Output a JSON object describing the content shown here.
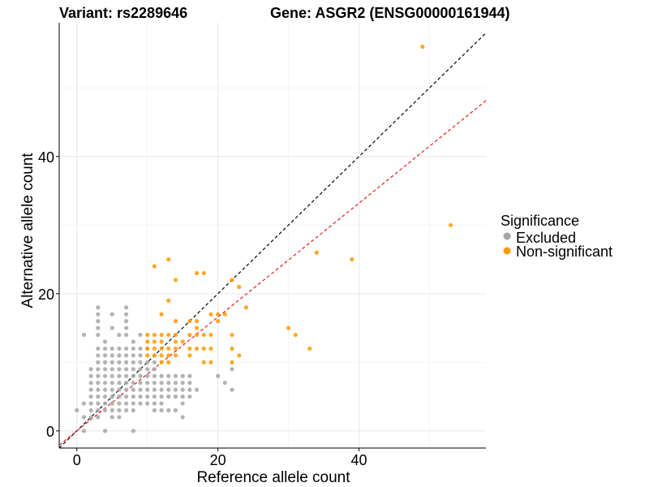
{
  "chart_data": {
    "type": "scatter",
    "title_left": "Variant: rs2289646",
    "title_right": "Gene: ASGR2 (ENSG00000161944)",
    "xlabel": "Reference allele count",
    "ylabel": "Alternative allele count",
    "xlim": [
      -2.5,
      58
    ],
    "ylim": [
      -2.5,
      59.5
    ],
    "x_ticks": [
      0,
      20,
      40
    ],
    "y_ticks": [
      0,
      20,
      40
    ],
    "x_minor_grid": [
      10,
      30,
      50
    ],
    "y_minor_grid": [
      10,
      30,
      50
    ],
    "grid": true,
    "reference_lines": [
      {
        "name": "y = x",
        "slope": 1.0,
        "intercept": 0,
        "color": "#000000",
        "dashed": true
      },
      {
        "name": "fitted ratio",
        "slope": 0.83,
        "intercept": 0,
        "color": "#e41a1c",
        "dashed": true
      }
    ],
    "legend": {
      "title": "Significance",
      "position": "right",
      "entries": [
        {
          "label": "Excluded",
          "color": "#a6a6a6"
        },
        {
          "label": "Non-significant",
          "color": "#ff9900"
        }
      ]
    },
    "series": [
      {
        "name": "Excluded",
        "color": "#a6a6a6",
        "points": [
          [
            0,
            3
          ],
          [
            1,
            0
          ],
          [
            1,
            2
          ],
          [
            1,
            4
          ],
          [
            1,
            14
          ],
          [
            2,
            2
          ],
          [
            2,
            3
          ],
          [
            2,
            4
          ],
          [
            2,
            5
          ],
          [
            2,
            6
          ],
          [
            2,
            7
          ],
          [
            2,
            8
          ],
          [
            2,
            9
          ],
          [
            3,
            2
          ],
          [
            3,
            3
          ],
          [
            3,
            4
          ],
          [
            3,
            5
          ],
          [
            3,
            6
          ],
          [
            3,
            7
          ],
          [
            3,
            8
          ],
          [
            3,
            9
          ],
          [
            3,
            10
          ],
          [
            3,
            11
          ],
          [
            3,
            12
          ],
          [
            3,
            14
          ],
          [
            3,
            15
          ],
          [
            3,
            16
          ],
          [
            3,
            17
          ],
          [
            3,
            18
          ],
          [
            4,
            0
          ],
          [
            4,
            3
          ],
          [
            4,
            4
          ],
          [
            4,
            5
          ],
          [
            4,
            6
          ],
          [
            4,
            7
          ],
          [
            4,
            8
          ],
          [
            4,
            9
          ],
          [
            4,
            10
          ],
          [
            4,
            11
          ],
          [
            4,
            12
          ],
          [
            4,
            13
          ],
          [
            5,
            2
          ],
          [
            5,
            3
          ],
          [
            5,
            4
          ],
          [
            5,
            5
          ],
          [
            5,
            6
          ],
          [
            5,
            7
          ],
          [
            5,
            8
          ],
          [
            5,
            9
          ],
          [
            5,
            10
          ],
          [
            5,
            11
          ],
          [
            5,
            12
          ],
          [
            5,
            15
          ],
          [
            5,
            17
          ],
          [
            6,
            2
          ],
          [
            6,
            3
          ],
          [
            6,
            4
          ],
          [
            6,
            5
          ],
          [
            6,
            6
          ],
          [
            6,
            7
          ],
          [
            6,
            8
          ],
          [
            6,
            9
          ],
          [
            6,
            10
          ],
          [
            6,
            11
          ],
          [
            6,
            12
          ],
          [
            6,
            14
          ],
          [
            7,
            3
          ],
          [
            7,
            4
          ],
          [
            7,
            5
          ],
          [
            7,
            6
          ],
          [
            7,
            7
          ],
          [
            7,
            8
          ],
          [
            7,
            9
          ],
          [
            7,
            10
          ],
          [
            7,
            11
          ],
          [
            7,
            12
          ],
          [
            7,
            14
          ],
          [
            7,
            15
          ],
          [
            7,
            16
          ],
          [
            7,
            17
          ],
          [
            7,
            18
          ],
          [
            8,
            0
          ],
          [
            8,
            3
          ],
          [
            8,
            4
          ],
          [
            8,
            5
          ],
          [
            8,
            6
          ],
          [
            8,
            7
          ],
          [
            8,
            8
          ],
          [
            8,
            9
          ],
          [
            8,
            10
          ],
          [
            8,
            11
          ],
          [
            8,
            12
          ],
          [
            8,
            13
          ],
          [
            9,
            4
          ],
          [
            9,
            5
          ],
          [
            9,
            6
          ],
          [
            9,
            7
          ],
          [
            9,
            8
          ],
          [
            9,
            9
          ],
          [
            9,
            10
          ],
          [
            9,
            11
          ],
          [
            9,
            12
          ],
          [
            9,
            14
          ],
          [
            10,
            4
          ],
          [
            10,
            5
          ],
          [
            10,
            6
          ],
          [
            10,
            7
          ],
          [
            10,
            8
          ],
          [
            10,
            9
          ],
          [
            10,
            10
          ],
          [
            10,
            12
          ],
          [
            11,
            3
          ],
          [
            11,
            4
          ],
          [
            11,
            5
          ],
          [
            11,
            6
          ],
          [
            11,
            7
          ],
          [
            11,
            8
          ],
          [
            11,
            9
          ],
          [
            11,
            10
          ],
          [
            12,
            3
          ],
          [
            12,
            4
          ],
          [
            12,
            5
          ],
          [
            12,
            6
          ],
          [
            12,
            7
          ],
          [
            12,
            8
          ],
          [
            13,
            3
          ],
          [
            13,
            5
          ],
          [
            13,
            6
          ],
          [
            13,
            7
          ],
          [
            13,
            8
          ],
          [
            14,
            3
          ],
          [
            14,
            5
          ],
          [
            14,
            6
          ],
          [
            14,
            7
          ],
          [
            14,
            8
          ],
          [
            15,
            2
          ],
          [
            15,
            4
          ],
          [
            15,
            5
          ],
          [
            15,
            6
          ],
          [
            15,
            7
          ],
          [
            15,
            8
          ],
          [
            16,
            5
          ],
          [
            16,
            6
          ],
          [
            16,
            7
          ],
          [
            16,
            8
          ],
          [
            17,
            6
          ],
          [
            20,
            8
          ],
          [
            21,
            7
          ],
          [
            22,
            6
          ],
          [
            22,
            9
          ]
        ]
      },
      {
        "name": "Non-significant",
        "color": "#ff9900",
        "points": [
          [
            10,
            11
          ],
          [
            10,
            12
          ],
          [
            10,
            13
          ],
          [
            10,
            14
          ],
          [
            11,
            11
          ],
          [
            11,
            12
          ],
          [
            11,
            13
          ],
          [
            11,
            14
          ],
          [
            11,
            24
          ],
          [
            12,
            10
          ],
          [
            12,
            11
          ],
          [
            12,
            12
          ],
          [
            12,
            13
          ],
          [
            12,
            14
          ],
          [
            12,
            17
          ],
          [
            13,
            10
          ],
          [
            13,
            11
          ],
          [
            13,
            12
          ],
          [
            13,
            14
          ],
          [
            13,
            19
          ],
          [
            13,
            25
          ],
          [
            14,
            11
          ],
          [
            14,
            12
          ],
          [
            14,
            13
          ],
          [
            14,
            14
          ],
          [
            14,
            16
          ],
          [
            14,
            22
          ],
          [
            15,
            13
          ],
          [
            16,
            11
          ],
          [
            16,
            12
          ],
          [
            16,
            14
          ],
          [
            16,
            16
          ],
          [
            17,
            12
          ],
          [
            17,
            14
          ],
          [
            17,
            15
          ],
          [
            17,
            16
          ],
          [
            17,
            23
          ],
          [
            18,
            10
          ],
          [
            18,
            12
          ],
          [
            18,
            14
          ],
          [
            18,
            23
          ],
          [
            19,
            10
          ],
          [
            19,
            12
          ],
          [
            19,
            14
          ],
          [
            19,
            17
          ],
          [
            20,
            16
          ],
          [
            20,
            17
          ],
          [
            21,
            17
          ],
          [
            22,
            10
          ],
          [
            22,
            12
          ],
          [
            22,
            14
          ],
          [
            22,
            22
          ],
          [
            23,
            11
          ],
          [
            23,
            21
          ],
          [
            24,
            18
          ],
          [
            30,
            15
          ],
          [
            31,
            14
          ],
          [
            33,
            12
          ],
          [
            34,
            26
          ],
          [
            39,
            25
          ],
          [
            49,
            56
          ],
          [
            53,
            30
          ]
        ]
      }
    ]
  }
}
